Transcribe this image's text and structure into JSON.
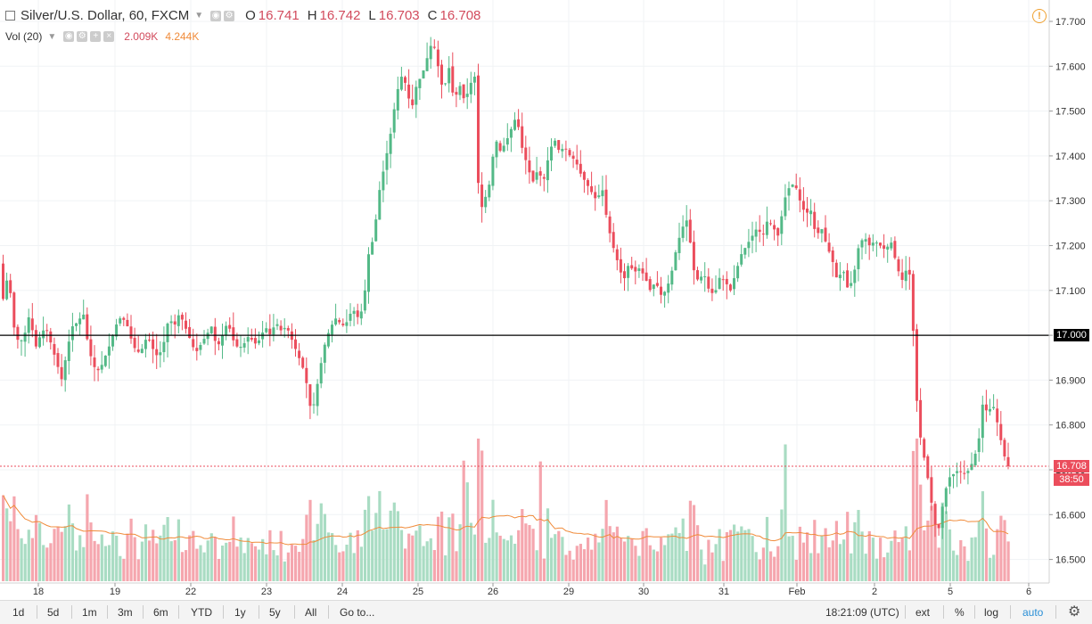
{
  "legend": {
    "symbol": "Silver/U.S. Dollar, 60, FXCM",
    "o_label": "O",
    "o": "16.741",
    "h_label": "H",
    "h": "16.742",
    "l_label": "L",
    "l": "16.703",
    "c_label": "C",
    "c": "16.708",
    "vol_label": "Vol (20)",
    "vol_value": "2.009K",
    "vol_ma": "4.244K"
  },
  "price_labels": {
    "level": "17.000",
    "last": "16.708",
    "countdown": "38:50"
  },
  "colors": {
    "up": "#53b987",
    "down": "#eb4d5c",
    "up_vol": "#a9dcc3",
    "down_vol": "#f5a6ae",
    "ma": "#f08b3a",
    "accent": "#2a8fd6"
  },
  "chart_data": {
    "type": "candlestick",
    "title": "Silver/U.S. Dollar, 60, FXCM",
    "y_ticks": [
      "17.700",
      "17.600",
      "17.500",
      "17.400",
      "17.300",
      "17.200",
      "17.100",
      "17.000",
      "16.900",
      "16.800",
      "16.700",
      "16.600",
      "16.500"
    ],
    "ylim": [
      16.46,
      17.74
    ],
    "x_ticks": [
      "18",
      "19",
      "22",
      "23",
      "24",
      "25",
      "26",
      "29",
      "30",
      "31",
      "Feb",
      "2",
      "5",
      "6"
    ],
    "horizontal_line": 17.0,
    "last_price": 16.708,
    "path": [
      [
        0,
        17.2
      ],
      [
        6,
        17.08
      ],
      [
        12,
        17.14
      ],
      [
        18,
        17.02
      ],
      [
        24,
        16.98
      ],
      [
        30,
        17.0
      ],
      [
        36,
        17.05
      ],
      [
        42,
        16.97
      ],
      [
        48,
        17.0
      ],
      [
        54,
        17.02
      ],
      [
        60,
        16.98
      ],
      [
        66,
        16.94
      ],
      [
        72,
        16.9
      ],
      [
        78,
        16.97
      ],
      [
        84,
        17.02
      ],
      [
        90,
        17.03
      ],
      [
        96,
        17.05
      ],
      [
        102,
        16.97
      ],
      [
        108,
        16.93
      ],
      [
        114,
        16.92
      ],
      [
        120,
        16.95
      ],
      [
        126,
        16.98
      ],
      [
        132,
        17.02
      ],
      [
        138,
        17.04
      ],
      [
        144,
        17.03
      ],
      [
        150,
        16.99
      ],
      [
        156,
        16.96
      ],
      [
        162,
        16.97
      ],
      [
        168,
        17.0
      ],
      [
        174,
        16.97
      ],
      [
        180,
        16.95
      ],
      [
        186,
        16.98
      ],
      [
        192,
        17.04
      ],
      [
        198,
        17.02
      ],
      [
        204,
        17.05
      ],
      [
        210,
        17.02
      ],
      [
        216,
        16.99
      ],
      [
        222,
        16.96
      ],
      [
        228,
        16.98
      ],
      [
        234,
        17.0
      ],
      [
        240,
        17.02
      ],
      [
        246,
        16.97
      ],
      [
        252,
        17.0
      ],
      [
        258,
        17.03
      ],
      [
        264,
        16.99
      ],
      [
        270,
        16.97
      ],
      [
        276,
        16.98
      ],
      [
        282,
        17.0
      ],
      [
        288,
        16.98
      ],
      [
        294,
        16.99
      ],
      [
        300,
        17.02
      ],
      [
        306,
        17.0
      ],
      [
        312,
        17.03
      ],
      [
        318,
        17.01
      ],
      [
        324,
        17.02
      ],
      [
        330,
        16.99
      ],
      [
        336,
        16.96
      ],
      [
        342,
        16.93
      ],
      [
        348,
        16.88
      ],
      [
        352,
        16.82
      ],
      [
        356,
        16.86
      ],
      [
        362,
        16.93
      ],
      [
        368,
        16.99
      ],
      [
        374,
        17.02
      ],
      [
        380,
        17.04
      ],
      [
        386,
        17.02
      ],
      [
        392,
        17.03
      ],
      [
        398,
        17.06
      ],
      [
        404,
        17.04
      ],
      [
        410,
        17.06
      ],
      [
        416,
        17.18
      ],
      [
        422,
        17.22
      ],
      [
        428,
        17.32
      ],
      [
        434,
        17.38
      ],
      [
        440,
        17.44
      ],
      [
        446,
        17.52
      ],
      [
        452,
        17.58
      ],
      [
        458,
        17.56
      ],
      [
        464,
        17.5
      ],
      [
        470,
        17.56
      ],
      [
        476,
        17.58
      ],
      [
        482,
        17.62
      ],
      [
        488,
        17.66
      ],
      [
        494,
        17.6
      ],
      [
        500,
        17.54
      ],
      [
        506,
        17.6
      ],
      [
        512,
        17.52
      ],
      [
        518,
        17.56
      ],
      [
        524,
        17.52
      ],
      [
        530,
        17.56
      ],
      [
        536,
        17.58
      ],
      [
        540,
        17.27
      ],
      [
        546,
        17.3
      ],
      [
        552,
        17.34
      ],
      [
        558,
        17.44
      ],
      [
        564,
        17.41
      ],
      [
        570,
        17.43
      ],
      [
        576,
        17.46
      ],
      [
        582,
        17.49
      ],
      [
        588,
        17.42
      ],
      [
        594,
        17.38
      ],
      [
        600,
        17.34
      ],
      [
        606,
        17.37
      ],
      [
        612,
        17.34
      ],
      [
        618,
        17.4
      ],
      [
        624,
        17.44
      ],
      [
        630,
        17.41
      ],
      [
        636,
        17.42
      ],
      [
        642,
        17.4
      ],
      [
        648,
        17.39
      ],
      [
        654,
        17.36
      ],
      [
        660,
        17.34
      ],
      [
        666,
        17.32
      ],
      [
        672,
        17.3
      ],
      [
        678,
        17.33
      ],
      [
        684,
        17.25
      ],
      [
        690,
        17.2
      ],
      [
        696,
        17.16
      ],
      [
        702,
        17.12
      ],
      [
        708,
        17.16
      ],
      [
        714,
        17.14
      ],
      [
        720,
        17.15
      ],
      [
        726,
        17.13
      ],
      [
        732,
        17.1
      ],
      [
        738,
        17.12
      ],
      [
        744,
        17.09
      ],
      [
        750,
        17.1
      ],
      [
        756,
        17.14
      ],
      [
        762,
        17.2
      ],
      [
        768,
        17.24
      ],
      [
        774,
        17.26
      ],
      [
        780,
        17.15
      ],
      [
        786,
        17.12
      ],
      [
        792,
        17.14
      ],
      [
        798,
        17.1
      ],
      [
        804,
        17.09
      ],
      [
        810,
        17.13
      ],
      [
        816,
        17.12
      ],
      [
        822,
        17.1
      ],
      [
        828,
        17.14
      ],
      [
        834,
        17.18
      ],
      [
        840,
        17.2
      ],
      [
        846,
        17.22
      ],
      [
        852,
        17.24
      ],
      [
        858,
        17.22
      ],
      [
        864,
        17.26
      ],
      [
        870,
        17.24
      ],
      [
        876,
        17.22
      ],
      [
        882,
        17.3
      ],
      [
        888,
        17.33
      ],
      [
        894,
        17.34
      ],
      [
        900,
        17.3
      ],
      [
        906,
        17.27
      ],
      [
        912,
        17.28
      ],
      [
        918,
        17.22
      ],
      [
        924,
        17.24
      ],
      [
        930,
        17.2
      ],
      [
        936,
        17.17
      ],
      [
        942,
        17.12
      ],
      [
        948,
        17.15
      ],
      [
        954,
        17.1
      ],
      [
        960,
        17.13
      ],
      [
        966,
        17.2
      ],
      [
        972,
        17.22
      ],
      [
        978,
        17.2
      ],
      [
        984,
        17.21
      ],
      [
        990,
        17.2
      ],
      [
        996,
        17.19
      ],
      [
        1002,
        17.21
      ],
      [
        1008,
        17.16
      ],
      [
        1014,
        17.12
      ],
      [
        1020,
        17.15
      ],
      [
        1024,
        17.13
      ],
      [
        1028,
        16.97
      ],
      [
        1032,
        16.82
      ],
      [
        1036,
        16.76
      ],
      [
        1042,
        16.7
      ],
      [
        1048,
        16.62
      ],
      [
        1054,
        16.55
      ],
      [
        1060,
        16.62
      ],
      [
        1066,
        16.68
      ],
      [
        1072,
        16.69
      ],
      [
        1078,
        16.7
      ],
      [
        1084,
        16.69
      ],
      [
        1090,
        16.7
      ],
      [
        1096,
        16.73
      ],
      [
        1102,
        16.78
      ],
      [
        1106,
        16.87
      ],
      [
        1110,
        16.82
      ],
      [
        1116,
        16.85
      ],
      [
        1122,
        16.8
      ],
      [
        1126,
        16.76
      ],
      [
        1132,
        16.708
      ]
    ]
  }
}
